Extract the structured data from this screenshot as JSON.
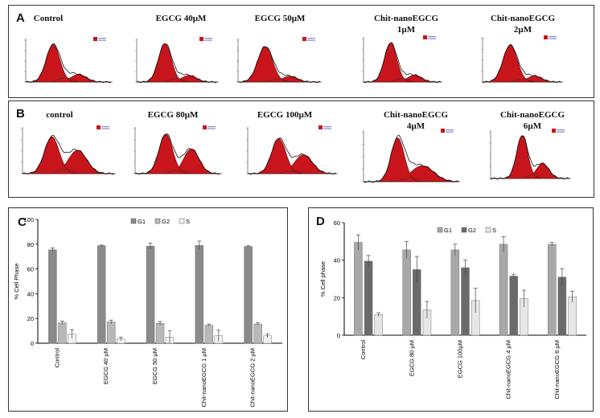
{
  "panel_a": {
    "letter": "A",
    "titles": [
      [
        "Control"
      ],
      [
        "EGCG 40µM"
      ],
      [
        "EGCG 50µM"
      ],
      [
        "Chit-nanoEGCG",
        "1µM"
      ],
      [
        "Chit-nanoEGCG",
        "2µM"
      ]
    ]
  },
  "panel_b": {
    "letter": "B",
    "titles": [
      [
        "control"
      ],
      [
        "EGCG 80µM"
      ],
      [
        "EGCG 100µM"
      ],
      [
        "Chit-nanoEGCG",
        "4µM"
      ],
      [
        "Chit-nanoEGCG",
        "6µM"
      ]
    ]
  },
  "histogram_colors": {
    "fill": "#c8151b",
    "curve": "#111111"
  },
  "chart_data": [
    {
      "type": "bar",
      "panel": "C",
      "ylabel": "% Cell Phase",
      "ylim": [
        0,
        100
      ],
      "yticks": [
        0,
        20,
        40,
        60,
        80,
        100
      ],
      "categories": [
        "Control",
        "EGCG 40 µM",
        "EGCG 50 µM",
        "Chit-nanoEGCG 1 µM",
        "Chit-nanoEGCG 2 µM"
      ],
      "legend_position": "top-center",
      "series": [
        {
          "name": "G1",
          "color": "#8a8a8a",
          "values": [
            75.5,
            78.8,
            78.5,
            79,
            78.2
          ],
          "errors": [
            1.5,
            0.5,
            2.5,
            3.5,
            0.5
          ]
        },
        {
          "name": "G2",
          "color": "#b8b8b8",
          "values": [
            16.5,
            17.2,
            16,
            14.5,
            15.5
          ],
          "errors": [
            1.5,
            1.5,
            1.5,
            1.0,
            1.0
          ]
        },
        {
          "name": "S",
          "color": "#f2f2f2",
          "values": [
            7.5,
            3.5,
            5,
            6,
            6
          ],
          "errors": [
            3.5,
            1.5,
            5.0,
            4.5,
            1.5
          ]
        }
      ]
    },
    {
      "type": "bar",
      "panel": "D",
      "ylabel": "% Cell phase",
      "ylim": [
        0,
        60
      ],
      "yticks": [
        0,
        20,
        40,
        60
      ],
      "categories": [
        "Control",
        "EGCG 80 µM",
        "EGCG 100µM",
        "Chit-nanoEGCG 4 µM",
        "Chit-nanoEGCG 6 µM"
      ],
      "legend_position": "top-center",
      "series": [
        {
          "name": "G1",
          "color": "#a8a8a8",
          "values": [
            49.5,
            45.5,
            45.5,
            48.5,
            48.5
          ],
          "errors": [
            4,
            4.5,
            3,
            4,
            1
          ]
        },
        {
          "name": "G2",
          "color": "#6a6a6a",
          "values": [
            39.5,
            35,
            36,
            31.5,
            31
          ],
          "errors": [
            3,
            7,
            4,
            1,
            4.5
          ]
        },
        {
          "name": "S",
          "color": "#e6e6e6",
          "values": [
            11,
            13.5,
            18.5,
            19.5,
            20.5
          ],
          "errors": [
            1,
            4.5,
            6.5,
            4.5,
            3
          ]
        }
      ]
    }
  ]
}
